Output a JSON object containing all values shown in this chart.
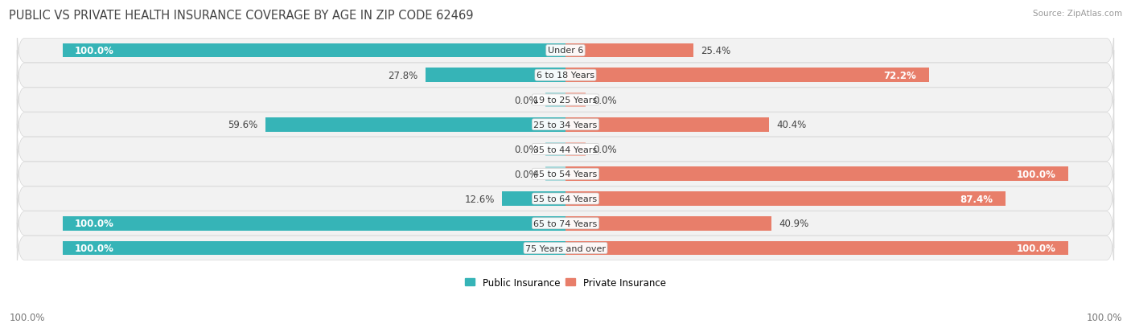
{
  "title": "PUBLIC VS PRIVATE HEALTH INSURANCE COVERAGE BY AGE IN ZIP CODE 62469",
  "source": "Source: ZipAtlas.com",
  "categories": [
    "Under 6",
    "6 to 18 Years",
    "19 to 25 Years",
    "25 to 34 Years",
    "35 to 44 Years",
    "45 to 54 Years",
    "55 to 64 Years",
    "65 to 74 Years",
    "75 Years and over"
  ],
  "public_values": [
    100.0,
    27.8,
    0.0,
    59.6,
    0.0,
    0.0,
    12.6,
    100.0,
    100.0
  ],
  "private_values": [
    25.4,
    72.2,
    0.0,
    40.4,
    0.0,
    100.0,
    87.4,
    40.9,
    100.0
  ],
  "public_color": "#36b4b7",
  "private_color": "#e87e6a",
  "public_color_light": "#a8d8da",
  "private_color_light": "#f2b5aa",
  "row_bg": "#f2f2f2",
  "row_border": "#e0e0e0",
  "max_value": 100.0,
  "bar_height": 0.58,
  "label_fontsize": 8.5,
  "title_fontsize": 10.5,
  "axis_label_fontsize": 8.5
}
